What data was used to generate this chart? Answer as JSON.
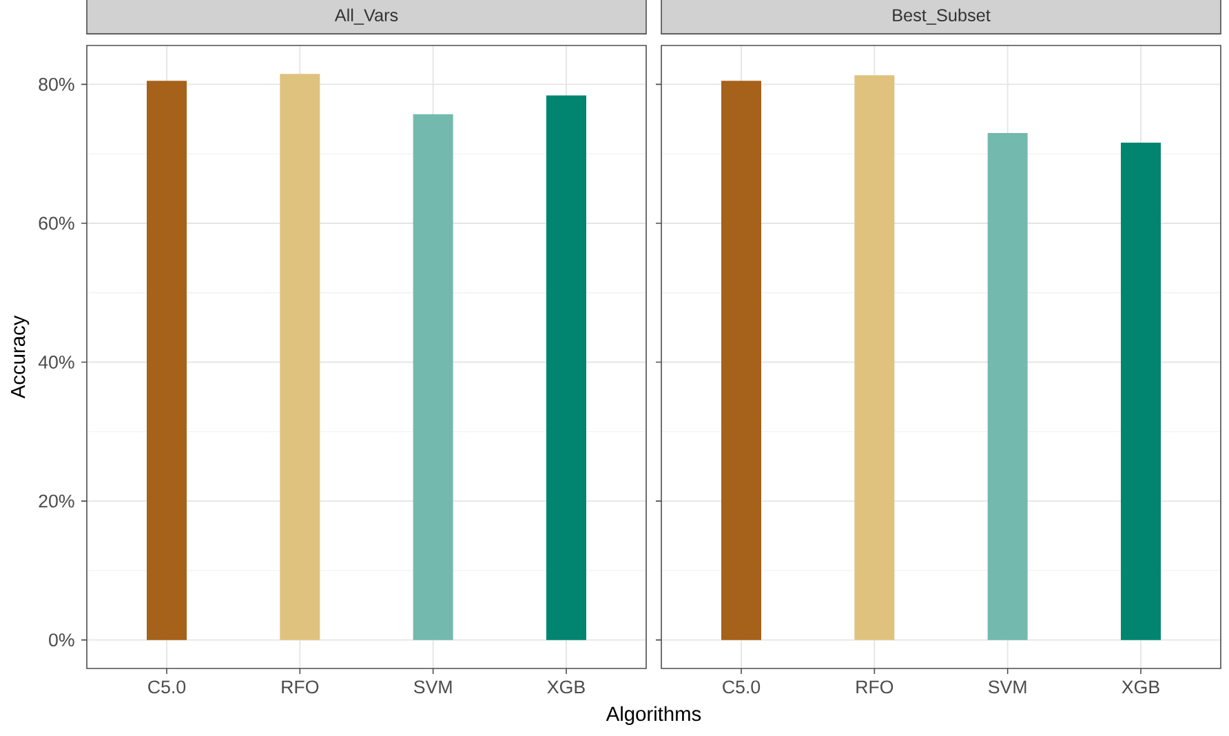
{
  "chart_data": [
    {
      "type": "bar",
      "title": "All_Vars",
      "xlabel": "Algorithms",
      "ylabel": "Accuracy",
      "categories": [
        "C5.0",
        "RFO",
        "SVM",
        "XGB"
      ],
      "values": [
        80.5,
        81.5,
        75.7,
        78.4
      ],
      "colors": [
        "#a6611a",
        "#dfc27d",
        "#74b9ae",
        "#018571"
      ],
      "ylim": [
        -4.1,
        85.6
      ],
      "yticks": [
        {
          "value": 0,
          "label": "0%"
        },
        {
          "value": 20,
          "label": "20%"
        },
        {
          "value": 40,
          "label": "40%"
        },
        {
          "value": 60,
          "label": "60%"
        },
        {
          "value": 80,
          "label": "80%"
        }
      ],
      "grid": true
    },
    {
      "type": "bar",
      "title": "Best_Subset",
      "categories": [
        "C5.0",
        "RFO",
        "SVM",
        "XGB"
      ],
      "values": [
        80.5,
        81.3,
        73.0,
        71.6
      ],
      "colors": [
        "#a6611a",
        "#dfc27d",
        "#74b9ae",
        "#018571"
      ],
      "ylim": [
        -4.1,
        85.6
      ],
      "yticks": [
        0,
        20,
        40,
        60,
        80
      ],
      "grid": true,
      "tick_labels": "x"
    }
  ]
}
